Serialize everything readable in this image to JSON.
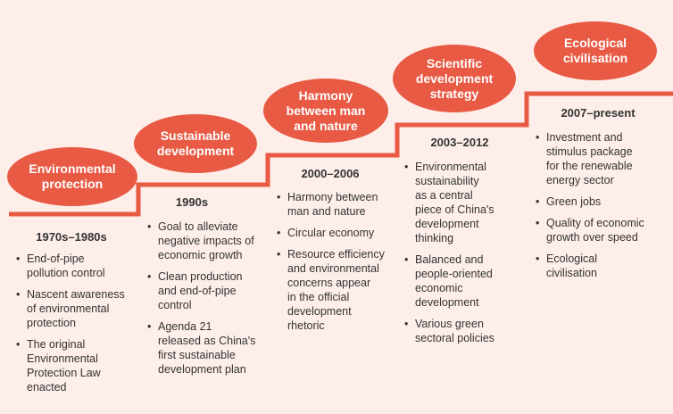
{
  "colors": {
    "accent": "#e85a44",
    "background": "#fdeee9"
  },
  "stages": [
    {
      "title": "Environmental\nprotection",
      "period": "1970s–1980s",
      "items": [
        "End-of-pipe\npollution control",
        "Nascent awareness\nof environmental\nprotection",
        "The original\nEnvironmental\nProtection Law\nenacted"
      ]
    },
    {
      "title": "Sustainable\ndevelopment",
      "period": "1990s",
      "items": [
        "Goal to alleviate\nnegative impacts of\neconomic growth",
        "Clean production\nand end-of-pipe\ncontrol",
        "Agenda 21\nreleased as China's\nfirst sustainable\ndevelopment plan"
      ]
    },
    {
      "title": "Harmony\nbetween man\nand nature",
      "period": "2000–2006",
      "items": [
        "Harmony between\nman and nature",
        "Circular economy",
        "Resource efficiency\nand environmental\nconcerns appear\nin the official\ndevelopment\nrhetoric"
      ]
    },
    {
      "title": "Scientific\ndevelopment\nstrategy",
      "period": "2003–2012",
      "items": [
        "Environmental\nsustainability\nas a central\npiece of China's\ndevelopment\nthinking",
        "Balanced and\npeople-oriented\neconomic\ndevelopment",
        "Various green\nsectoral policies"
      ]
    },
    {
      "title": "Ecological\ncivilisation",
      "period": "2007–present",
      "items": [
        "Investment and\nstimulus package\nfor the renewable\nenergy sector",
        "Green jobs",
        "Quality of economic\ngrowth over speed",
        "Ecological\ncivilisation"
      ]
    }
  ]
}
